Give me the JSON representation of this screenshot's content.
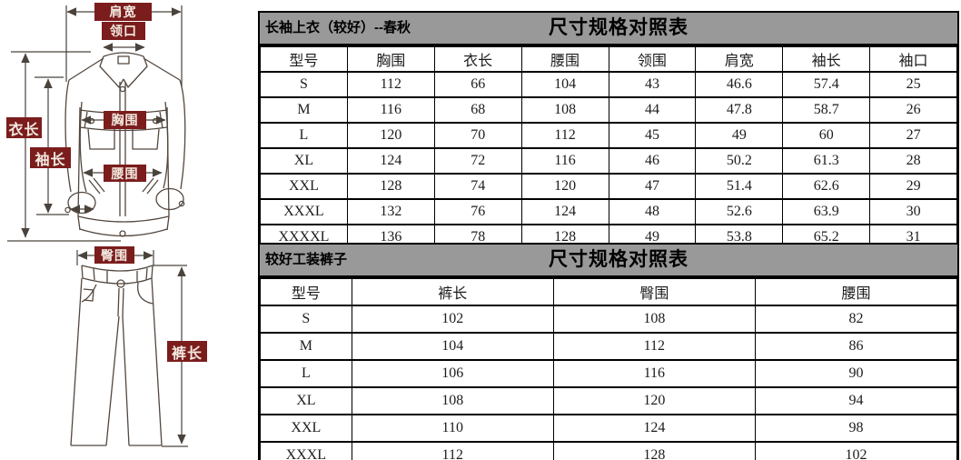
{
  "diagram": {
    "labels": {
      "shoulder_width": "肩宽",
      "collar": "领口",
      "garment_length": "衣长",
      "sleeve_length": "袖长",
      "chest": "胸围",
      "waist": "腰围",
      "hip": "臀围",
      "pants_length": "裤长"
    }
  },
  "jacket_table": {
    "title": "长袖上衣（较好）--春秋",
    "subtitle": "尺寸规格对照表",
    "headers": [
      "型号",
      "胸围",
      "衣长",
      "腰围",
      "领围",
      "肩宽",
      "袖长",
      "袖口"
    ],
    "rows": [
      [
        "S",
        "112",
        "66",
        "104",
        "43",
        "46.6",
        "57.4",
        "25"
      ],
      [
        "M",
        "116",
        "68",
        "108",
        "44",
        "47.8",
        "58.7",
        "26"
      ],
      [
        "L",
        "120",
        "70",
        "112",
        "45",
        "49",
        "60",
        "27"
      ],
      [
        "XL",
        "124",
        "72",
        "116",
        "46",
        "50.2",
        "61.3",
        "28"
      ],
      [
        "XXL",
        "128",
        "74",
        "120",
        "47",
        "51.4",
        "62.6",
        "29"
      ],
      [
        "XXXL",
        "132",
        "76",
        "124",
        "48",
        "52.6",
        "63.9",
        "30"
      ],
      [
        "XXXXL",
        "136",
        "78",
        "128",
        "49",
        "53.8",
        "65.2",
        "31"
      ]
    ]
  },
  "pants_table": {
    "title": "较好工装裤子",
    "subtitle": "尺寸规格对照表",
    "headers": [
      "型号",
      "裤长",
      "臀围",
      "腰围"
    ],
    "rows": [
      [
        "S",
        "102",
        "108",
        "82"
      ],
      [
        "M",
        "104",
        "112",
        "86"
      ],
      [
        "L",
        "106",
        "116",
        "90"
      ],
      [
        "XL",
        "108",
        "120",
        "94"
      ],
      [
        "XXL",
        "110",
        "124",
        "98"
      ],
      [
        "XXXL",
        "112",
        "128",
        "102"
      ]
    ]
  },
  "colors": {
    "label_bg": "#7B1D1D",
    "label_text": "#F2EAE0",
    "bar_bg": "#999999",
    "line": "#4A433C"
  }
}
